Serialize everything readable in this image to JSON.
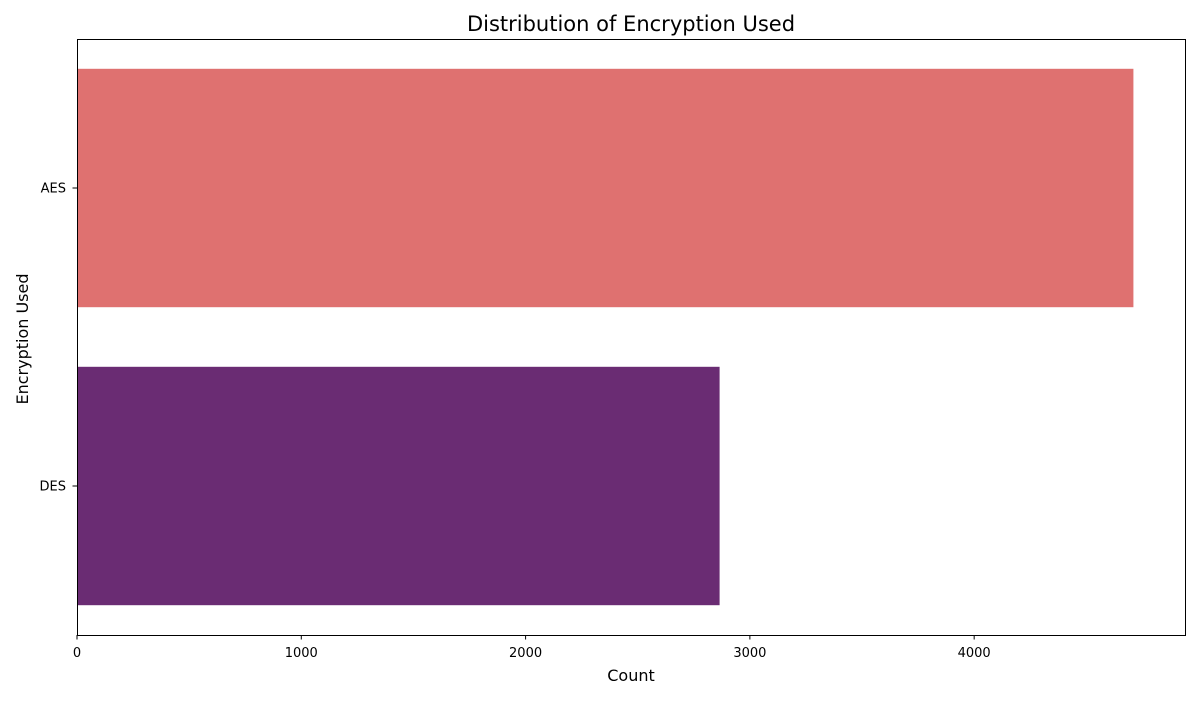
{
  "chart_data": {
    "type": "bar",
    "orientation": "horizontal",
    "title": "Distribution of Encryption Used",
    "xlabel": "Count",
    "ylabel": "Encryption Used",
    "categories": [
      "AES",
      "DES"
    ],
    "values": [
      4710,
      2865
    ],
    "bar_colors": [
      "#df7170",
      "#6a2c73"
    ],
    "xlim": [
      0,
      4940
    ],
    "xticks": [
      0,
      1000,
      2000,
      3000,
      4000
    ],
    "grid": false,
    "legend": "none"
  }
}
